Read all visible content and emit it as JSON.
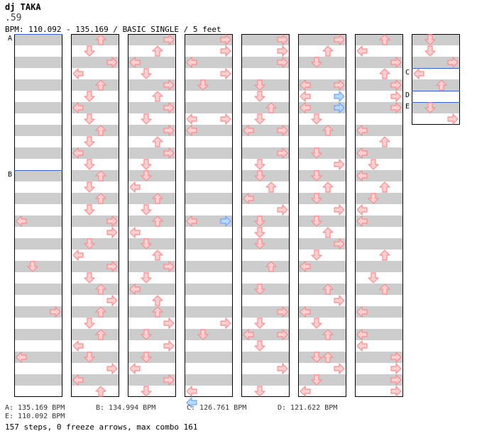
{
  "header": {
    "artist": "dj TAKA",
    "subtitle": ".59",
    "bpm_line": "BPM: 110.092 - 135.169 / BASIC SINGLE / 5 feet"
  },
  "colors": {
    "stripe": "#cccccc",
    "border": "#000000",
    "tap_arrow": "#ff8a8a",
    "tap_arrow_fill": "#ffd0d0",
    "blue_arrow": "#66a8ff",
    "blue_arrow_fill": "#bcd8ff",
    "marker_line": "#3366cc"
  },
  "markers": [
    {
      "id": "A",
      "column": 0,
      "beat": 0
    },
    {
      "id": "B",
      "column": 0,
      "beat": 48
    },
    {
      "id": "C",
      "column": 7,
      "beat": 12
    },
    {
      "id": "D",
      "column": 7,
      "beat": 20
    },
    {
      "id": "E",
      "column": 7,
      "beat": 24
    }
  ],
  "bpm_list": [
    {
      "label": "A: 135.169 BPM"
    },
    {
      "label": "B: 134.994 BPM"
    },
    {
      "label": "C: 126.761 BPM"
    },
    {
      "label": "D: 121.622 BPM"
    },
    {
      "label": "E: 110.092 BPM"
    }
  ],
  "stats": "157 steps, 0 freeze arrows, max combo 161",
  "icons": {
    "arrow_left": "left-arrow-icon",
    "arrow_down": "down-arrow-icon",
    "arrow_up": "up-arrow-icon",
    "arrow_right": "right-arrow-icon"
  },
  "notes": [
    [
      {
        "b": 64,
        "d": "L"
      },
      {
        "b": 80,
        "d": "D"
      },
      {
        "b": 96,
        "d": "R"
      },
      {
        "b": 112,
        "d": "L"
      }
    ],
    [
      {
        "b": 0,
        "d": "U"
      },
      {
        "b": 4,
        "d": "D"
      },
      {
        "b": 8,
        "d": "R"
      },
      {
        "b": 12,
        "d": "L"
      },
      {
        "b": 16,
        "d": "U"
      },
      {
        "b": 20,
        "d": "D"
      },
      {
        "b": 24,
        "d": "L"
      },
      {
        "b": 28,
        "d": "D"
      },
      {
        "b": 32,
        "d": "U"
      },
      {
        "b": 36,
        "d": "D"
      },
      {
        "b": 40,
        "d": "L"
      },
      {
        "b": 44,
        "d": "D"
      },
      {
        "b": 48,
        "d": "U"
      },
      {
        "b": 52,
        "d": "D"
      },
      {
        "b": 56,
        "d": "U"
      },
      {
        "b": 60,
        "d": "D"
      },
      {
        "b": 64,
        "d": "R"
      },
      {
        "b": 68,
        "d": "R"
      },
      {
        "b": 72,
        "d": "D"
      },
      {
        "b": 76,
        "d": "L"
      },
      {
        "b": 80,
        "d": "R"
      },
      {
        "b": 84,
        "d": "D"
      },
      {
        "b": 88,
        "d": "U"
      },
      {
        "b": 92,
        "d": "R"
      },
      {
        "b": 96,
        "d": "U"
      },
      {
        "b": 100,
        "d": "D"
      },
      {
        "b": 104,
        "d": "U"
      },
      {
        "b": 108,
        "d": "L"
      },
      {
        "b": 112,
        "d": "D"
      },
      {
        "b": 116,
        "d": "R"
      },
      {
        "b": 120,
        "d": "L"
      },
      {
        "b": 124,
        "d": "U"
      }
    ],
    [
      {
        "b": 0,
        "d": "R"
      },
      {
        "b": 4,
        "d": "U"
      },
      {
        "b": 8,
        "d": "L"
      },
      {
        "b": 12,
        "d": "D"
      },
      {
        "b": 16,
        "d": "R"
      },
      {
        "b": 20,
        "d": "U"
      },
      {
        "b": 24,
        "d": "R"
      },
      {
        "b": 28,
        "d": "D"
      },
      {
        "b": 32,
        "d": "R"
      },
      {
        "b": 36,
        "d": "U"
      },
      {
        "b": 40,
        "d": "R"
      },
      {
        "b": 44,
        "d": "D"
      },
      {
        "b": 48,
        "d": "D"
      },
      {
        "b": 52,
        "d": "L"
      },
      {
        "b": 56,
        "d": "U"
      },
      {
        "b": 60,
        "d": "D"
      },
      {
        "b": 64,
        "d": "U"
      },
      {
        "b": 68,
        "d": "L"
      },
      {
        "b": 72,
        "d": "D"
      },
      {
        "b": 76,
        "d": "U"
      },
      {
        "b": 80,
        "d": "R"
      },
      {
        "b": 84,
        "d": "D"
      },
      {
        "b": 88,
        "d": "L"
      },
      {
        "b": 92,
        "d": "U"
      },
      {
        "b": 96,
        "d": "U"
      },
      {
        "b": 100,
        "d": "R"
      },
      {
        "b": 104,
        "d": "D"
      },
      {
        "b": 108,
        "d": "R"
      },
      {
        "b": 112,
        "d": "D"
      },
      {
        "b": 116,
        "d": "L"
      },
      {
        "b": 120,
        "d": "R"
      },
      {
        "b": 124,
        "d": "D"
      }
    ],
    [
      {
        "b": 0,
        "d": "R"
      },
      {
        "b": 4,
        "d": "R"
      },
      {
        "b": 8,
        "d": "L"
      },
      {
        "b": 12,
        "d": "R"
      },
      {
        "b": 16,
        "d": "D"
      },
      {
        "b": 28,
        "d": "L"
      },
      {
        "b": 28,
        "d": "R"
      },
      {
        "b": 32,
        "d": "L"
      },
      {
        "b": 64,
        "d": "L"
      },
      {
        "b": 100,
        "d": "R"
      },
      {
        "b": 104,
        "d": "D"
      },
      {
        "b": 124,
        "d": "L"
      }
    ],
    [
      {
        "b": 0,
        "d": "R"
      },
      {
        "b": 4,
        "d": "R"
      },
      {
        "b": 8,
        "d": "R"
      },
      {
        "b": 16,
        "d": "D"
      },
      {
        "b": 20,
        "d": "D"
      },
      {
        "b": 24,
        "d": "U"
      },
      {
        "b": 28,
        "d": "D"
      },
      {
        "b": 32,
        "d": "L"
      },
      {
        "b": 32,
        "d": "R"
      },
      {
        "b": 40,
        "d": "R"
      },
      {
        "b": 44,
        "d": "D"
      },
      {
        "b": 48,
        "d": "D"
      },
      {
        "b": 52,
        "d": "U"
      },
      {
        "b": 56,
        "d": "L"
      },
      {
        "b": 60,
        "d": "R"
      },
      {
        "b": 64,
        "d": "D"
      },
      {
        "b": 68,
        "d": "D"
      },
      {
        "b": 72,
        "d": "D"
      },
      {
        "b": 80,
        "d": "U"
      },
      {
        "b": 88,
        "d": "D"
      },
      {
        "b": 96,
        "d": "R"
      },
      {
        "b": 100,
        "d": "D"
      },
      {
        "b": 104,
        "d": "L"
      },
      {
        "b": 104,
        "d": "R"
      },
      {
        "b": 108,
        "d": "D"
      },
      {
        "b": 116,
        "d": "R"
      },
      {
        "b": 124,
        "d": "D"
      }
    ],
    [
      {
        "b": 0,
        "d": "R"
      },
      {
        "b": 4,
        "d": "U"
      },
      {
        "b": 8,
        "d": "D"
      },
      {
        "b": 16,
        "d": "L"
      },
      {
        "b": 16,
        "d": "R"
      },
      {
        "b": 20,
        "d": "L"
      },
      {
        "b": 24,
        "d": "L"
      },
      {
        "b": 24,
        "d": "R"
      },
      {
        "b": 28,
        "d": "D"
      },
      {
        "b": 32,
        "d": "U"
      },
      {
        "b": 40,
        "d": "D"
      },
      {
        "b": 44,
        "d": "R"
      },
      {
        "b": 48,
        "d": "D"
      },
      {
        "b": 52,
        "d": "U"
      },
      {
        "b": 56,
        "d": "D"
      },
      {
        "b": 60,
        "d": "R"
      },
      {
        "b": 64,
        "d": "D"
      },
      {
        "b": 68,
        "d": "U"
      },
      {
        "b": 72,
        "d": "R"
      },
      {
        "b": 76,
        "d": "D"
      },
      {
        "b": 80,
        "d": "L"
      },
      {
        "b": 88,
        "d": "U"
      },
      {
        "b": 92,
        "d": "R"
      },
      {
        "b": 96,
        "d": "L"
      },
      {
        "b": 100,
        "d": "D"
      },
      {
        "b": 104,
        "d": "U"
      },
      {
        "b": 112,
        "d": "U"
      },
      {
        "b": 112,
        "d": "D"
      },
      {
        "b": 116,
        "d": "R"
      },
      {
        "b": 120,
        "d": "D"
      },
      {
        "b": 124,
        "d": "L"
      }
    ],
    [
      {
        "b": 0,
        "d": "U"
      },
      {
        "b": 4,
        "d": "L"
      },
      {
        "b": 8,
        "d": "R"
      },
      {
        "b": 12,
        "d": "U"
      },
      {
        "b": 16,
        "d": "R"
      },
      {
        "b": 20,
        "d": "R"
      },
      {
        "b": 24,
        "d": "R"
      },
      {
        "b": 32,
        "d": "L"
      },
      {
        "b": 36,
        "d": "U"
      },
      {
        "b": 40,
        "d": "L"
      },
      {
        "b": 44,
        "d": "D"
      },
      {
        "b": 48,
        "d": "L"
      },
      {
        "b": 52,
        "d": "U"
      },
      {
        "b": 56,
        "d": "D"
      },
      {
        "b": 60,
        "d": "L"
      },
      {
        "b": 64,
        "d": "L"
      },
      {
        "b": 76,
        "d": "U"
      },
      {
        "b": 84,
        "d": "D"
      },
      {
        "b": 88,
        "d": "U"
      },
      {
        "b": 96,
        "d": "L"
      },
      {
        "b": 104,
        "d": "L"
      },
      {
        "b": 108,
        "d": "L"
      },
      {
        "b": 112,
        "d": "R"
      },
      {
        "b": 116,
        "d": "R"
      },
      {
        "b": 120,
        "d": "R"
      },
      {
        "b": 124,
        "d": "R"
      }
    ],
    [
      {
        "b": 0,
        "d": "D"
      },
      {
        "b": 4,
        "d": "D"
      },
      {
        "b": 8,
        "d": "R"
      },
      {
        "b": 12,
        "d": "L"
      },
      {
        "b": 16,
        "d": "U"
      },
      {
        "b": 24,
        "d": "D"
      },
      {
        "b": 28,
        "d": "R"
      }
    ]
  ],
  "blue_notes": [
    [],
    [],
    [],
    [
      {
        "b": 64,
        "d": "R"
      },
      {
        "b": 128,
        "d": "L"
      }
    ],
    [],
    [
      {
        "b": 20,
        "d": "R"
      },
      {
        "b": 24,
        "d": "R"
      }
    ],
    [],
    []
  ]
}
